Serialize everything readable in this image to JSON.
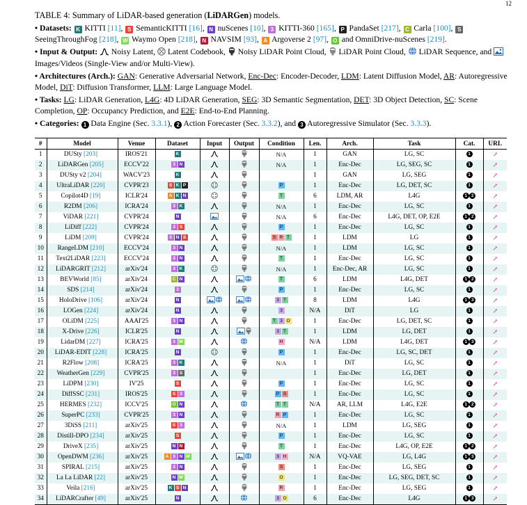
{
  "page_number": "12",
  "caption": {
    "prefix": "TABLE 4: Summary of LiDAR-based generation (",
    "bold": "LiDARGen",
    "suffix": ") models."
  },
  "legend": {
    "datasets_label": "Datasets:",
    "datasets": [
      {
        "code": "K",
        "color": "#1f7a7a",
        "name": "KITTI",
        "ref": "[11]"
      },
      {
        "code": "S",
        "color": "#e8463a",
        "name": "SemanticKITTI",
        "ref": "[16]"
      },
      {
        "code": "N",
        "color": "#6b3fc2",
        "name": "nuScenes",
        "ref": "[10]"
      },
      {
        "code": "3",
        "color": "#c06fd8",
        "name": "KITTI-360",
        "ref": "[165]"
      },
      {
        "code": "P",
        "color": "#222222",
        "name": "PandaSet",
        "ref": "[217]"
      },
      {
        "code": "C",
        "color": "#9bb83a",
        "name": "Carla",
        "ref": "[100]"
      },
      {
        "code": "S",
        "color": "#666666",
        "name": "SeeingThroughFog",
        "ref": "[218]"
      },
      {
        "code": "W",
        "color": "#7ed957",
        "name": "Waymo Open",
        "ref": "[218]"
      },
      {
        "code": "N",
        "color": "#b5173a",
        "name": "NAVSIM",
        "ref": "[93]"
      },
      {
        "code": "A",
        "color": "#f08a24",
        "name": "Argoverse 2",
        "ref": "[97]"
      },
      {
        "code": "O",
        "color": "#6cc63c",
        "name": "and OmniDrive-nuScenes",
        "ref": "[219]"
      }
    ],
    "io_label": "Input & Output:",
    "io_items": [
      "Noisy Latent,",
      "Latent Codebook,",
      "Noisy LiDAR Point Cloud,",
      "LiDAR Point Cloud,",
      "LiDAR Sequence, and",
      "Images/Videos (Single-View and/or Multi-View)."
    ],
    "arch_label": "Architectures (Arch.):",
    "arch_items": [
      {
        "abbr": "GAN",
        "desc": ": Generative Adversarial Network,"
      },
      {
        "abbr": "Enc-Dec",
        "desc": ": Encoder-Decoder,"
      },
      {
        "abbr": "LDM",
        "desc": ": Latent Diffusion Model,"
      },
      {
        "abbr": "AR",
        "desc": ": Autoregressive Model,"
      },
      {
        "abbr": "DiT",
        "desc": ": Diffusion Transformer,"
      },
      {
        "abbr": "LLM",
        "desc": ": Large Language Model."
      }
    ],
    "tasks_label": "Tasks:",
    "task_items": [
      {
        "abbr": "LG",
        "desc": ": LiDAR Generation,"
      },
      {
        "abbr": "L4G",
        "desc": ": 4D LiDAR Generation,"
      },
      {
        "abbr": "SEG",
        "desc": ": 3D Semantic Segmentation,"
      },
      {
        "abbr": "DET",
        "desc": ": 3D Object Detection,"
      },
      {
        "abbr": "SC",
        "desc": ": Scene Completion,"
      },
      {
        "abbr": "OP",
        "desc": ": Occupancy Prediction, and"
      },
      {
        "abbr": "E2E",
        "desc": ": End-to-End Planning."
      }
    ],
    "categories_label": "Categories:",
    "category_items": [
      {
        "num": "1",
        "name": "Data Engine (Sec.",
        "ref": "3.3.1",
        "end": "),"
      },
      {
        "num": "2",
        "name": "Action Forecaster (Sec.",
        "ref": "3.3.2",
        "end": "), and"
      },
      {
        "num": "3",
        "name": "Autoregressive Simulator (Sec.",
        "ref": "3.3.3",
        "end": ")."
      }
    ]
  },
  "table": {
    "headers": [
      "#",
      "Model",
      "Venue",
      "Dataset",
      "Input",
      "Output",
      "Condition",
      "Len.",
      "Arch.",
      "Task",
      "Cat.",
      "URL"
    ],
    "link_glyph": "↗",
    "rows": [
      {
        "n": "1",
        "model": "DUSty",
        "ref": "[203]",
        "venue": "IROS'21",
        "ds": [
          [
            "K",
            "#1f7a7a"
          ]
        ],
        "inp": "noisy",
        "out": "pc",
        "cond": "N/A",
        "len": "1",
        "arch": "GAN",
        "task": "LG, SC",
        "cat": [
          "1"
        ]
      },
      {
        "n": "2",
        "model": "LiDARGen",
        "ref": "[205]",
        "venue": "ECCV'22",
        "ds": [
          [
            "3",
            "#c06fd8"
          ],
          [
            "N",
            "#6b3fc2"
          ]
        ],
        "inp": "noisy",
        "out": "pc",
        "cond": "N/A",
        "len": "1",
        "arch": "Enc-Dec",
        "task": "LG, SEG, SC",
        "cat": [
          "1"
        ]
      },
      {
        "n": "3",
        "model": "DUSty v2",
        "ref": "[204]",
        "venue": "WACV'23",
        "ds": [
          [
            "K",
            "#1f7a7a"
          ]
        ],
        "inp": "noisy",
        "out": "pc",
        "cond": "",
        "len": "1",
        "arch": "GAN",
        "task": "LG, SEG",
        "cat": [
          "1"
        ]
      },
      {
        "n": "4",
        "model": "UltraLiDAR",
        "ref": "[220]",
        "venue": "CVPR'23",
        "ds": [
          [
            "S",
            "#e8463a"
          ],
          [
            "K",
            "#1f7a7a"
          ],
          [
            "P",
            "#222222"
          ]
        ],
        "inp": "code",
        "out": "pc",
        "cond": "P",
        "len": "1",
        "arch": "Enc-Dec",
        "task": "LG, DET, SC",
        "cat": [
          "1"
        ]
      },
      {
        "n": "5",
        "model": "Copilot4D",
        "ref": "[19]",
        "venue": "ICLR'24",
        "ds": [
          [
            "A",
            "#f08a24"
          ],
          [
            "K",
            "#1f7a7a"
          ],
          [
            "N",
            "#6b3fc2"
          ]
        ],
        "inp": "code",
        "out": "pc",
        "cond": "T",
        "len": "6",
        "arch": "LDM, AR",
        "task": "L4G",
        "cat": [
          "1",
          "2"
        ]
      },
      {
        "n": "6",
        "model": "R2DM",
        "ref": "[206]",
        "venue": "ICRA'24",
        "ds": [
          [
            "3",
            "#c06fd8"
          ],
          [
            "K",
            "#1f7a7a"
          ]
        ],
        "inp": "noisy",
        "out": "pc",
        "cond": "N/A",
        "len": "1",
        "arch": "Enc-Dec",
        "task": "LG, SC",
        "cat": [
          "1"
        ]
      },
      {
        "n": "7",
        "model": "ViDAR",
        "ref": "[221]",
        "venue": "CVPR'24",
        "ds": [
          [
            "N",
            "#6b3fc2"
          ]
        ],
        "inp": "img",
        "out": "pc",
        "cond": "N/A",
        "len": "6",
        "arch": "Enc-Dec",
        "task": "L4G, DET, OP, E2E",
        "cat": [
          "1",
          "2"
        ]
      },
      {
        "n": "8",
        "model": "LiDiff",
        "ref": "[222]",
        "venue": "CVPR'24",
        "ds": [
          [
            "3",
            "#c06fd8"
          ],
          [
            "S",
            "#e8463a"
          ]
        ],
        "inp": "noisy",
        "out": "pc",
        "cond": "P",
        "len": "1",
        "arch": "Enc-Dec",
        "task": "LG, SC",
        "cat": [
          "1"
        ]
      },
      {
        "n": "9",
        "model": "LiDM",
        "ref": "[209]",
        "venue": "CVPR'24",
        "ds": [
          [
            "3",
            "#c06fd8"
          ],
          [
            "N",
            "#6b3fc2"
          ],
          [
            "S",
            "#e8463a"
          ]
        ],
        "inp": "noisy",
        "out": "pc",
        "cond": "SRT",
        "len": "1",
        "arch": "LDM",
        "task": "LG",
        "cat": [
          "1"
        ]
      },
      {
        "n": "10",
        "model": "RangeLDM",
        "ref": "[210]",
        "venue": "ECCV'24",
        "ds": [
          [
            "3",
            "#c06fd8"
          ],
          [
            "N",
            "#6b3fc2"
          ]
        ],
        "inp": "noisy",
        "out": "pc",
        "cond": "N/A",
        "len": "1",
        "arch": "LDM",
        "task": "LG, SC",
        "cat": [
          "1"
        ]
      },
      {
        "n": "11",
        "model": "Text2LiDAR",
        "ref": "[223]",
        "venue": "ECCV'24",
        "ds": [
          [
            "3",
            "#c06fd8"
          ],
          [
            "N",
            "#6b3fc2"
          ]
        ],
        "inp": "noisy",
        "out": "pc",
        "cond": "T",
        "len": "1",
        "arch": "Enc-Dec",
        "task": "LG, SC",
        "cat": [
          "1"
        ]
      },
      {
        "n": "12",
        "model": "LiDARGRIT",
        "ref": "[212]",
        "venue": "arXiv'24",
        "ds": [
          [
            "3",
            "#c06fd8"
          ],
          [
            "K",
            "#1f7a7a"
          ]
        ],
        "inp": "code",
        "out": "pc",
        "cond": "N/A",
        "len": "1",
        "arch": "Enc-Dec, AR",
        "task": "LG, SC",
        "cat": [
          "1"
        ]
      },
      {
        "n": "13",
        "model": "BEVWorld",
        "ref": "[85]",
        "venue": "arXiv'24",
        "ds": [
          [
            "C",
            "#9bb83a"
          ],
          [
            "N",
            "#6b3fc2"
          ]
        ],
        "inp": "noisy",
        "out": "imgseq",
        "cond": "T",
        "len": "6",
        "arch": "LDM",
        "task": "L4G, DET",
        "cat": [
          "1",
          "2"
        ]
      },
      {
        "n": "14",
        "model": "SDS",
        "ref": "[214]",
        "venue": "arXiv'24",
        "ds": [
          [
            "3",
            "#c06fd8"
          ]
        ],
        "inp": "noisy",
        "out": "pc",
        "cond": "P",
        "len": "1",
        "arch": "Enc-Dec",
        "task": "LG, SC",
        "cat": [
          "1"
        ]
      },
      {
        "n": "15",
        "model": "HoloDrive",
        "ref": "[106]",
        "venue": "arXiv'24",
        "ds": [
          [
            "N",
            "#6b3fc2"
          ]
        ],
        "inp": "imgseq",
        "out": "imgseq",
        "cond": "3T",
        "len": "8",
        "arch": "LDM",
        "task": "L4G",
        "cat": [
          "1",
          "3"
        ]
      },
      {
        "n": "16",
        "model": "LOGen",
        "ref": "[224]",
        "venue": "arXiv'24",
        "ds": [
          [
            "N",
            "#6b3fc2"
          ]
        ],
        "inp": "noisy",
        "out": "pc",
        "cond": "3",
        "len": "N/A",
        "arch": "DiT",
        "task": "LG",
        "cat": [
          "1"
        ]
      },
      {
        "n": "17",
        "model": "OLiDM",
        "ref": "[225]",
        "venue": "AAAI'25",
        "ds": [
          [
            "3",
            "#c06fd8"
          ],
          [
            "N",
            "#6b3fc2"
          ]
        ],
        "inp": "noisy",
        "out": "pc",
        "cond": "T3O",
        "len": "1",
        "arch": "Enc-Dec",
        "task": "LG, DET, SC",
        "cat": [
          "1"
        ]
      },
      {
        "n": "18",
        "model": "X-Drive",
        "ref": "[226]",
        "venue": "ICLR'25",
        "ds": [
          [
            "N",
            "#6b3fc2"
          ]
        ],
        "inp": "noisy",
        "out": "imgpc",
        "cond": "3T",
        "len": "1",
        "arch": "LDM",
        "task": "LG, DET",
        "cat": [
          "1"
        ]
      },
      {
        "n": "19",
        "model": "LidarDM",
        "ref": "[227]",
        "venue": "ICRA'25",
        "ds": [
          [
            "3",
            "#c06fd8"
          ],
          [
            "W",
            "#7ed957"
          ]
        ],
        "inp": "noisy",
        "out": "seq",
        "cond": "H",
        "len": "N/A",
        "arch": "LDM",
        "task": "L4G, DET",
        "cat": [
          "1",
          "3"
        ]
      },
      {
        "n": "20",
        "model": "LiDAR-EDIT",
        "ref": "[228]",
        "venue": "ICRA'25",
        "ds": [
          [
            "N",
            "#6b3fc2"
          ]
        ],
        "inp": "code",
        "out": "pc",
        "cond": "P",
        "len": "1",
        "arch": "Enc-Dec",
        "task": "LG, SC, DET",
        "cat": [
          "1"
        ]
      },
      {
        "n": "21",
        "model": "R2Flow",
        "ref": "[208]",
        "venue": "ICRA'25",
        "ds": [
          [
            "3",
            "#c06fd8"
          ],
          [
            "K",
            "#1f7a7a"
          ]
        ],
        "inp": "noisy",
        "out": "pc",
        "cond": "N/A",
        "len": "1",
        "arch": "DiT",
        "task": "LG, SC",
        "cat": [
          "1"
        ]
      },
      {
        "n": "22",
        "model": "WeatherGen",
        "ref": "[229]",
        "venue": "CVPR'25",
        "ds": [
          [
            "3",
            "#c06fd8"
          ],
          [
            "S",
            "#666666"
          ]
        ],
        "inp": "noisy",
        "out": "pc",
        "cond": "",
        "len": "1",
        "arch": "Enc-Dec",
        "task": "LG, DET",
        "cat": [
          "1"
        ]
      },
      {
        "n": "23",
        "model": "LiDPM",
        "ref": "[230]",
        "venue": "IV'25",
        "ds": [
          [
            "S",
            "#e8463a"
          ]
        ],
        "inp": "noisy",
        "out": "pc",
        "cond": "P",
        "len": "1",
        "arch": "Enc-Dec",
        "task": "LG, SC",
        "cat": [
          "1"
        ]
      },
      {
        "n": "24",
        "model": "DiffSSC",
        "ref": "[231]",
        "venue": "IROS'25",
        "ds": [
          [
            "S",
            "#e8463a"
          ],
          [
            "3",
            "#c06fd8"
          ]
        ],
        "inp": "noisy",
        "out": "pc",
        "cond": "PS",
        "len": "1",
        "arch": "Enc-Dec",
        "task": "LG, SC",
        "cat": [
          "1"
        ]
      },
      {
        "n": "25",
        "model": "HERMES",
        "ref": "[232]",
        "venue": "ICCV'25",
        "ds": [
          [
            "O",
            "#6cc63c"
          ],
          [
            "N",
            "#6b3fc2"
          ]
        ],
        "inp": "noisy",
        "out": "seq",
        "cond": "TT",
        "len": "N/A",
        "arch": "AR, LLM",
        "task": "L4G, E2E",
        "cat": [
          "1",
          "2"
        ]
      },
      {
        "n": "26",
        "model": "SuperPC",
        "ref": "[233]",
        "venue": "CVPR'25",
        "ds": [
          [
            "3",
            "#c06fd8"
          ],
          [
            "N",
            "#6b3fc2"
          ]
        ],
        "inp": "noisy",
        "out": "pc",
        "cond": "RP",
        "len": "1",
        "arch": "Enc-Dec",
        "task": "LG, SC",
        "cat": [
          "1"
        ]
      },
      {
        "n": "27",
        "model": "3DiSS",
        "ref": "[211]",
        "venue": "arXiv'25",
        "ds": [
          [
            "S",
            "#e8463a"
          ],
          [
            "3",
            "#c06fd8"
          ]
        ],
        "inp": "noisy",
        "out": "pc",
        "cond": "N/A",
        "len": "1",
        "arch": "LDM",
        "task": "LG, SEG",
        "cat": [
          "1"
        ]
      },
      {
        "n": "28",
        "model": "Distill-DPO",
        "ref": "[234]",
        "venue": "arXiv'25",
        "ds": [
          [
            "S",
            "#e8463a"
          ]
        ],
        "inp": "noisy",
        "out": "pc",
        "cond": "P",
        "len": "1",
        "arch": "Enc-Dec",
        "task": "LG, SC",
        "cat": [
          "1"
        ]
      },
      {
        "n": "29",
        "model": "DriveX",
        "ref": "[235]",
        "venue": "arXiv'25",
        "ds": [
          [
            "N",
            "#6b3fc2"
          ],
          [
            "N",
            "#b5173a"
          ]
        ],
        "inp": "noisy",
        "out": "pc",
        "cond": "T",
        "len": "1",
        "arch": "Enc-Dec",
        "task": "L4G, OP, E2E",
        "cat": [
          "1",
          "2"
        ]
      },
      {
        "n": "30",
        "model": "OpenDWM",
        "ref": "[236]",
        "venue": "arXiv'25",
        "ds": [
          [
            "A",
            "#f08a24"
          ],
          [
            "3",
            "#c06fd8"
          ],
          [
            "N",
            "#6b3fc2"
          ],
          [
            "W",
            "#7ed957"
          ]
        ],
        "inp": "noisy",
        "out": "imgseq",
        "cond": "3H",
        "len": "N/A",
        "arch": "VQ-VAE",
        "task": "LG, L4G",
        "cat": [
          "1",
          "3"
        ]
      },
      {
        "n": "31",
        "model": "SPIRAL",
        "ref": "[215]",
        "venue": "arXiv'25",
        "ds": [
          [
            "3",
            "#c06fd8"
          ],
          [
            "N",
            "#6b3fc2"
          ]
        ],
        "inp": "noisy",
        "out": "pc",
        "cond": "S",
        "len": "1",
        "arch": "Enc-Dec",
        "task": "LG, SEG",
        "cat": [
          "1"
        ]
      },
      {
        "n": "32",
        "model": "La La LiDAR",
        "ref": "[22]",
        "venue": "arXiv'25",
        "ds": [
          [
            "N",
            "#6b3fc2"
          ],
          [
            "W",
            "#7ed957"
          ]
        ],
        "inp": "noisy",
        "out": "pc",
        "cond": "O",
        "len": "1",
        "arch": "Enc-Dec",
        "task": "LG, SEG, DET, SC",
        "cat": [
          "1"
        ]
      },
      {
        "n": "33",
        "model": "Veila",
        "ref": "[216]",
        "venue": "arXiv'25",
        "ds": [
          [
            "K",
            "#1f7a7a"
          ],
          [
            "S",
            "#e8463a"
          ],
          [
            "N",
            "#6b3fc2"
          ]
        ],
        "inp": "noisy",
        "out": "pc",
        "cond": "R",
        "len": "1",
        "arch": "Enc-Dec",
        "task": "LG, SEG",
        "cat": [
          "1"
        ]
      },
      {
        "n": "34",
        "model": "LiDARCrafter",
        "ref": "[49]",
        "venue": "arXiv'25",
        "ds": [
          [
            "N",
            "#6b3fc2"
          ]
        ],
        "inp": "noisy",
        "out": "seq",
        "cond": "3O",
        "len": "6",
        "arch": "Enc-Dec",
        "task": "L4G",
        "cat": [
          "1",
          "3"
        ]
      }
    ]
  },
  "cond_colors": {
    "P": "#64b5f6",
    "T": "#7fd1a0",
    "S": "#f28b82",
    "R": "#f4a3b0",
    "3": "#c9a8e8",
    "O": "#f6e27a",
    "H": "#f7a6c8"
  }
}
